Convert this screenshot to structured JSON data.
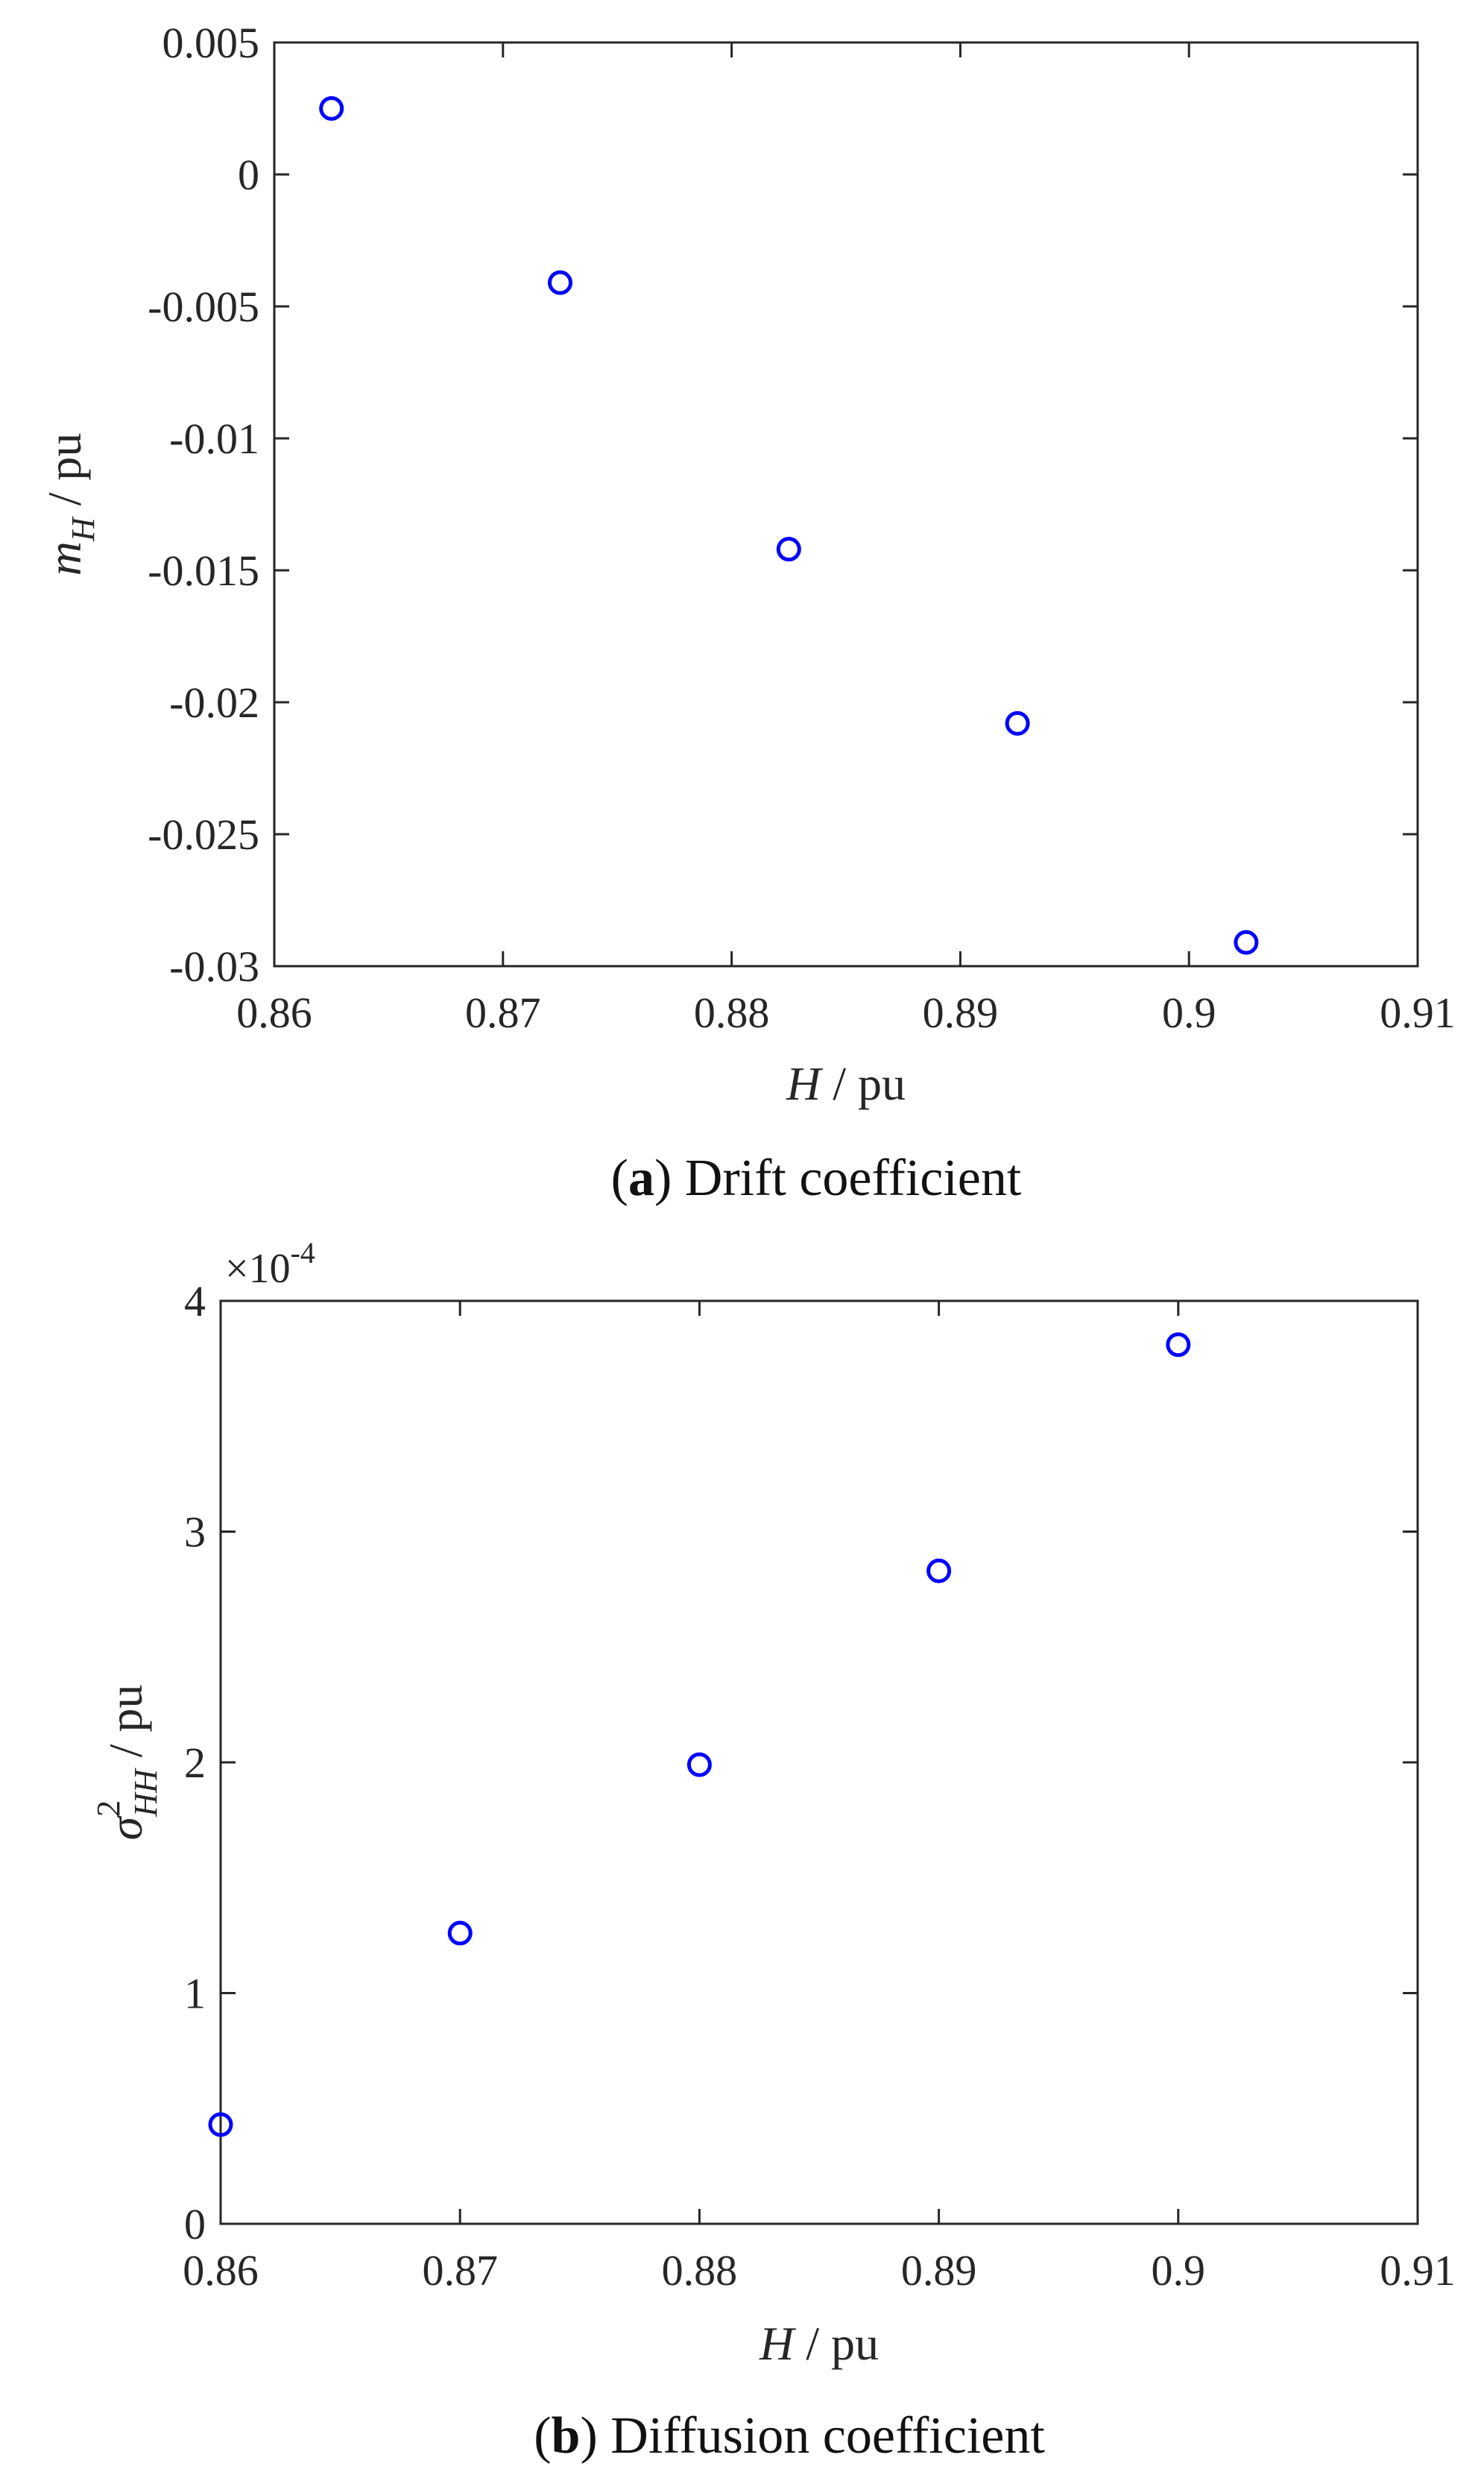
{
  "colors": {
    "marker": "#0000ff",
    "axis": "#262626",
    "background": "#ffffff"
  },
  "chart_data": [
    {
      "type": "scatter",
      "caption": {
        "letter": "a",
        "text": "Drift coefficient"
      },
      "xlabel": {
        "var": "H",
        "sep": " / ",
        "unit": "pu"
      },
      "ylabel": {
        "var": "m",
        "sub": "H",
        "sep": " / ",
        "unit": "pu"
      },
      "xlim": [
        0.86,
        0.91
      ],
      "ylim": [
        -0.03,
        0.005
      ],
      "xticks": [
        "0.86",
        "0.87",
        "0.88",
        "0.89",
        "0.9",
        "0.91"
      ],
      "yticks": [
        "-0.03",
        "-0.025",
        "-0.02",
        "-0.015",
        "-0.01",
        "-0.005",
        "0",
        "0.005"
      ],
      "grid": false,
      "marker": "open-circle",
      "series": [
        {
          "x": [
            0.8625,
            0.8725,
            0.8825,
            0.8925,
            0.9025
          ],
          "y": [
            0.0025,
            -0.0041,
            -0.0142,
            -0.0208,
            -0.0291
          ]
        }
      ]
    },
    {
      "type": "scatter",
      "caption": {
        "letter": "b",
        "text": "Diffusion coefficient"
      },
      "xlabel": {
        "var": "H",
        "sep": " / ",
        "unit": "pu"
      },
      "ylabel": {
        "var": "σ",
        "sup": "2",
        "sub": "HH",
        "sep": " / ",
        "unit": "pu"
      },
      "xlim": [
        0.86,
        0.91
      ],
      "ylim": [
        0,
        4
      ],
      "y_multiplier": {
        "base": "×10",
        "exp": "-4"
      },
      "xticks": [
        "0.86",
        "0.87",
        "0.88",
        "0.89",
        "0.9",
        "0.91"
      ],
      "yticks": [
        "0",
        "1",
        "2",
        "3",
        "4"
      ],
      "grid": false,
      "marker": "open-circle",
      "series": [
        {
          "x": [
            0.86,
            0.87,
            0.88,
            0.89,
            0.9
          ],
          "y": [
            0.43,
            1.26,
            1.99,
            2.83,
            3.81
          ]
        }
      ]
    }
  ]
}
